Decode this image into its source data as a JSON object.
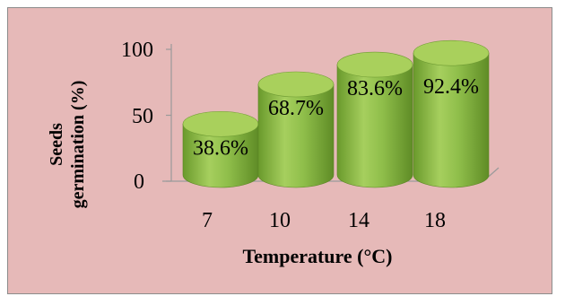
{
  "chart_data": {
    "type": "bar",
    "style": "3d-cylinder",
    "categories": [
      "7",
      "10",
      "14",
      "18"
    ],
    "values": [
      38.6,
      68.7,
      83.6,
      92.4
    ],
    "data_labels": [
      "38.6%",
      "68.7%",
      "83.6%",
      "92.4%"
    ],
    "xlabel": "Temperature (°C)",
    "ylabel_line1": "Seeds",
    "ylabel_line2": "germination (%)",
    "ylim": [
      0,
      100
    ],
    "yticks": [
      "0",
      "50",
      "100"
    ],
    "grid": false,
    "legend": "none",
    "colors": {
      "background": "#e6b9b8",
      "bar_side": "#8fbe4a",
      "bar_top": "#a9d05c",
      "axis": "#9a9a9a"
    }
  }
}
